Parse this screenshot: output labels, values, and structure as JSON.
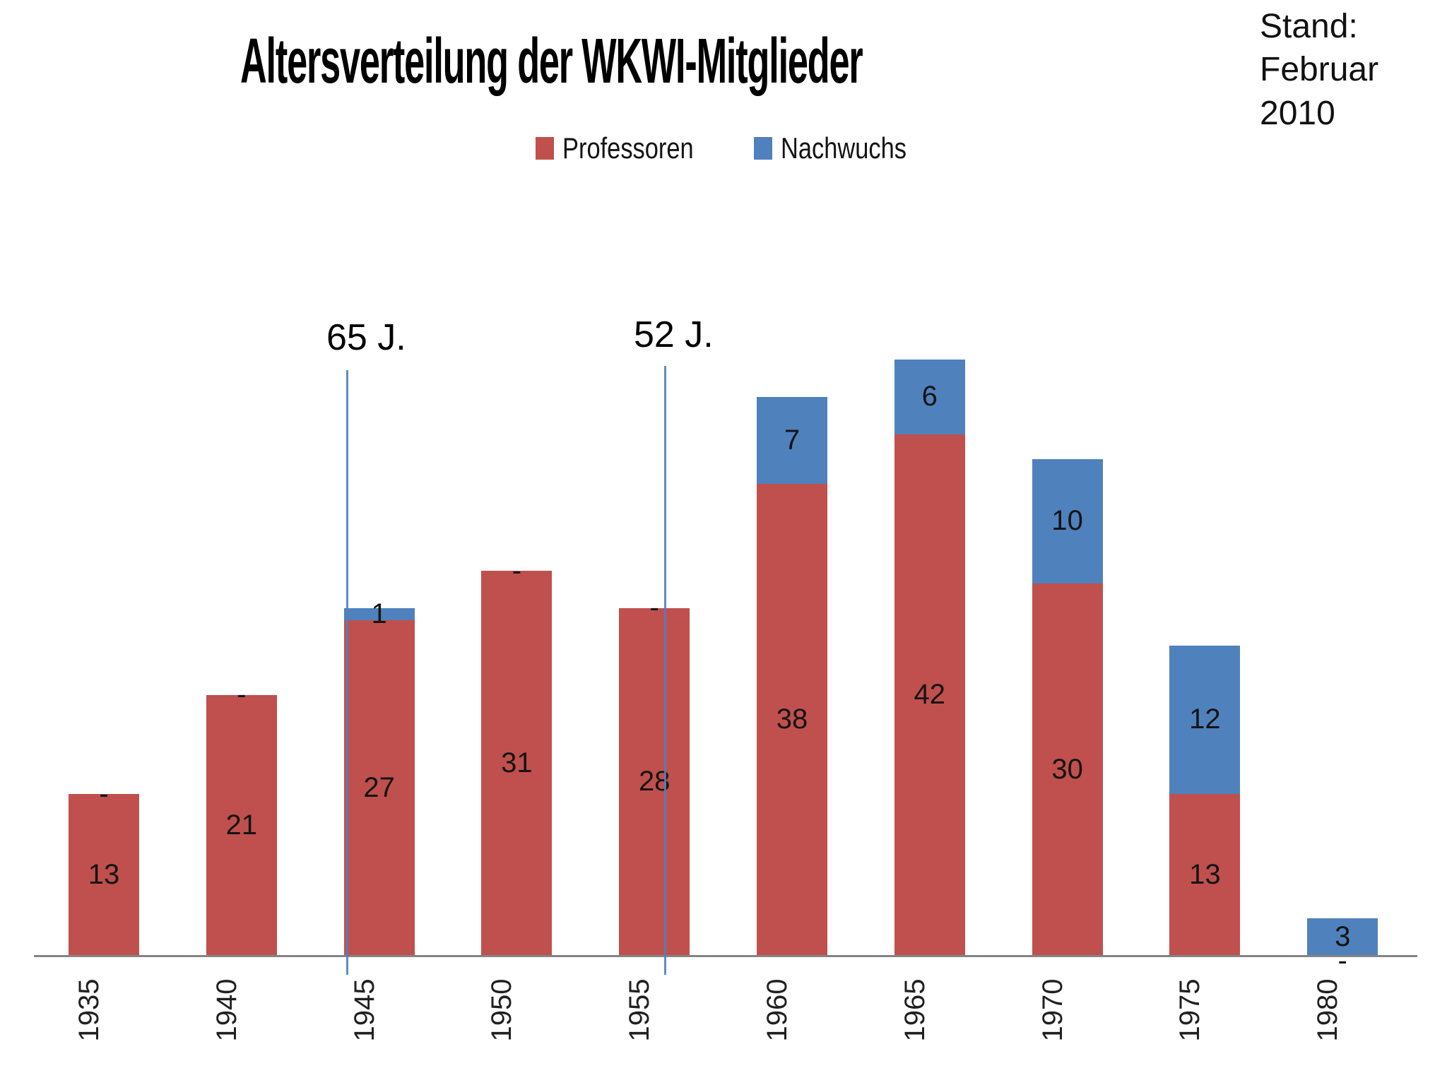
{
  "chart_data": {
    "type": "bar",
    "subtype": "stacked",
    "title": "Altersverteilung der WKWI-Mitglieder",
    "note": "Stand:\nFebruar\n2010",
    "categories": [
      "1935",
      "1940",
      "1945",
      "1950",
      "1955",
      "1960",
      "1965",
      "1970",
      "1975",
      "1980"
    ],
    "series": [
      {
        "name": "Professoren",
        "color": "#c0504d",
        "values": [
          13,
          21,
          27,
          31,
          28,
          38,
          42,
          30,
          13,
          0
        ]
      },
      {
        "name": "Nachwuchs",
        "color": "#4f81bd",
        "values": [
          0,
          0,
          1,
          0,
          0,
          7,
          6,
          10,
          12,
          3
        ]
      }
    ],
    "zero_label": "-",
    "data_labels": "centered-in-segment",
    "annotations": [
      {
        "label": "65 J.",
        "color": "#4f81bd"
      },
      {
        "label": "52 J.",
        "color": "#4f81bd"
      }
    ],
    "legend_position": "top",
    "legend_entries": [
      "Professoren",
      "Nachwuchs"
    ],
    "gridlines": false,
    "y_axis_visible": false,
    "x_axis_visible": true,
    "x_axis_color": "#848484",
    "x_tick_rotation_deg": 90,
    "ylim": [
      0,
      48
    ]
  }
}
